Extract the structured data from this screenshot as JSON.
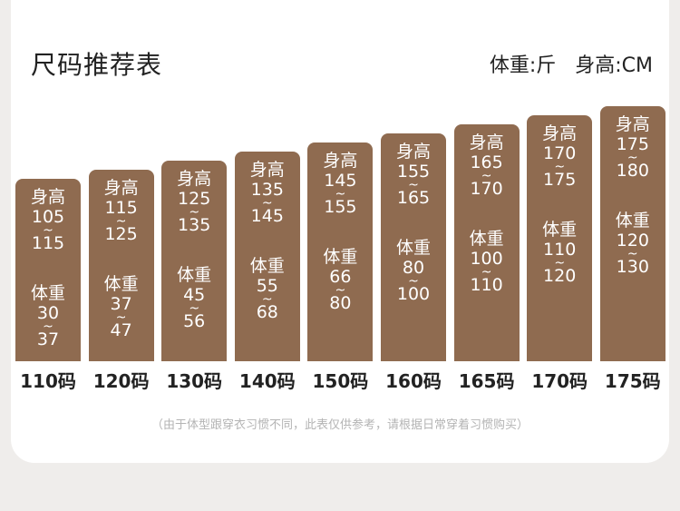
{
  "header": {
    "title": "尺码推荐表",
    "unit_weight": "体重:斤",
    "unit_height": "身高:CM"
  },
  "labels": {
    "height": "身高",
    "weight": "体重",
    "range_sep": "~"
  },
  "note": "（由于体型跟穿衣习惯不同，此表仅供参考，请根据日常穿着习惯购买）",
  "colors": {
    "bar": "#8f6b50",
    "background": "#efedeb",
    "card": "#ffffff"
  },
  "chart_data": {
    "type": "bar",
    "categories": [
      "110码",
      "120码",
      "130码",
      "140码",
      "150码",
      "160码",
      "165码",
      "170码",
      "175码"
    ],
    "series": [
      {
        "name": "身高",
        "low": [
          105,
          115,
          125,
          135,
          145,
          155,
          165,
          170,
          175
        ],
        "high": [
          115,
          125,
          135,
          145,
          155,
          165,
          170,
          175,
          180
        ]
      },
      {
        "name": "体重",
        "low": [
          30,
          37,
          45,
          55,
          66,
          80,
          100,
          110,
          120
        ],
        "high": [
          37,
          47,
          56,
          68,
          80,
          100,
          110,
          120,
          130
        ]
      }
    ],
    "title": "尺码推荐表",
    "xlabel": "",
    "ylabel": "",
    "grid": false
  }
}
